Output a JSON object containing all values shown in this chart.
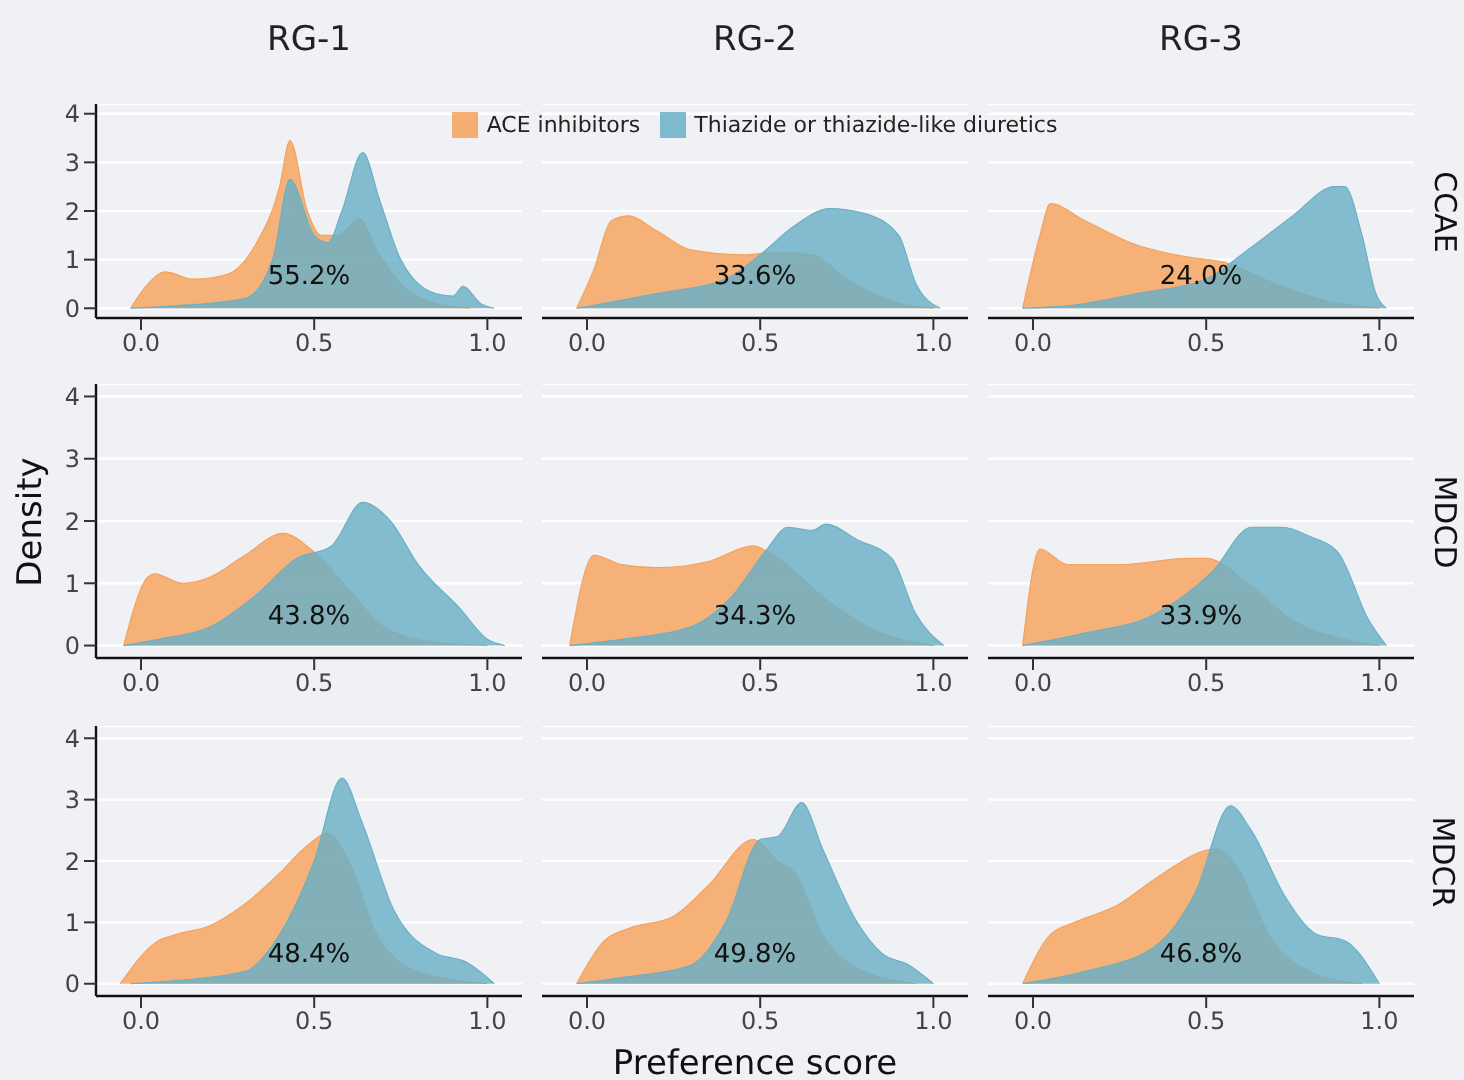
{
  "chart_data": [
    {
      "type": "area",
      "title": "RG-1",
      "xlim": [
        -0.13,
        1.1
      ],
      "ylim": [
        -0.2,
        4.2
      ],
      "xticks": [
        {
          "value": 0,
          "label": "0.0"
        },
        {
          "value": 0.5,
          "label": "0.5"
        },
        {
          "value": 1,
          "label": "1.0"
        }
      ],
      "yticks": [
        0,
        1,
        2,
        3,
        4
      ],
      "grid": "y",
      "annotations": [
        "55.2%"
      ],
      "series": [
        {
          "color": "#f5a25d",
          "x": [
            -0.03,
            0.02,
            0.07,
            0.15,
            0.25,
            0.33,
            0.4,
            0.43,
            0.48,
            0.52,
            0.57,
            0.63,
            0.68,
            0.75,
            0.85,
            0.95
          ],
          "values": [
            0,
            0.5,
            0.75,
            0.6,
            0.7,
            1.3,
            2.5,
            3.45,
            2,
            1.5,
            1.5,
            1.85,
            1.2,
            0.5,
            0.1,
            0
          ]
        },
        {
          "color": "#6ab0c6",
          "x": [
            -0.03,
            0.1,
            0.3,
            0.38,
            0.43,
            0.5,
            0.54,
            0.58,
            0.64,
            0.69,
            0.75,
            0.85,
            0.9,
            0.93,
            0.98,
            1.02
          ],
          "values": [
            0,
            0.05,
            0.2,
            1,
            2.65,
            1.5,
            1.35,
            2,
            3.2,
            2.2,
            1,
            0.3,
            0.25,
            0.45,
            0.1,
            0
          ]
        }
      ]
    },
    {
      "type": "area",
      "title": "RG-2",
      "xlim": [
        -0.13,
        1.1
      ],
      "ylim": [
        -0.2,
        4.2
      ],
      "xticks": [
        {
          "value": 0,
          "label": "0.0"
        },
        {
          "value": 0.5,
          "label": "0.5"
        },
        {
          "value": 1,
          "label": "1.0"
        }
      ],
      "yticks": [
        0,
        1,
        2,
        3,
        4
      ],
      "grid": "y",
      "tick_labels": "x",
      "legend": "top",
      "annotations": [
        "33.6%"
      ],
      "series": [
        {
          "name": "ACE inhibitors",
          "color": "#f5a25d",
          "x": [
            -0.03,
            0.02,
            0.07,
            0.12,
            0.2,
            0.3,
            0.45,
            0.55,
            0.65,
            0.75,
            0.9,
            1.0
          ],
          "values": [
            0,
            0.8,
            1.8,
            1.9,
            1.6,
            1.2,
            1.1,
            1.15,
            1.1,
            0.6,
            0.1,
            0
          ]
        },
        {
          "name": "Thiazide or thiazide-like diuretics",
          "color": "#6ab0c6",
          "x": [
            -0.03,
            0.05,
            0.2,
            0.4,
            0.5,
            0.6,
            0.7,
            0.8,
            0.9,
            0.95,
            1.02
          ],
          "values": [
            0,
            0.1,
            0.3,
            0.6,
            1.1,
            1.7,
            2.05,
            1.95,
            1.5,
            0.5,
            0
          ]
        }
      ]
    },
    {
      "type": "area",
      "title": "RG-3",
      "y2label": "CCAE",
      "xlim": [
        -0.13,
        1.1
      ],
      "ylim": [
        -0.2,
        4.2
      ],
      "xticks": [
        {
          "value": 0,
          "label": "0.0"
        },
        {
          "value": 0.5,
          "label": "0.5"
        },
        {
          "value": 1,
          "label": "1.0"
        }
      ],
      "yticks": [
        0,
        1,
        2,
        3,
        4
      ],
      "grid": "y",
      "tick_labels": "x",
      "annotations": [
        "24.0%"
      ],
      "series": [
        {
          "color": "#f5a25d",
          "x": [
            -0.03,
            0.02,
            0.05,
            0.15,
            0.3,
            0.45,
            0.55,
            0.7,
            0.85,
            1.0
          ],
          "values": [
            0,
            1.5,
            2.15,
            1.8,
            1.3,
            1.05,
            0.95,
            0.5,
            0.15,
            0
          ]
        },
        {
          "color": "#6ab0c6",
          "x": [
            -0.03,
            0.1,
            0.3,
            0.5,
            0.62,
            0.75,
            0.87,
            0.9,
            0.95,
            0.99,
            1.02
          ],
          "values": [
            0,
            0.05,
            0.3,
            0.6,
            1.2,
            1.9,
            2.5,
            2.5,
            1.5,
            0.3,
            0
          ]
        }
      ]
    },
    {
      "type": "area",
      "ylabel": "Density",
      "xlim": [
        -0.13,
        1.1
      ],
      "ylim": [
        -0.2,
        4.2
      ],
      "xticks": [
        {
          "value": 0,
          "label": "0.0"
        },
        {
          "value": 0.5,
          "label": "0.5"
        },
        {
          "value": 1,
          "label": "1.0"
        }
      ],
      "yticks": [
        0,
        1,
        2,
        3,
        4
      ],
      "grid": "y",
      "annotations": [
        "43.8%"
      ],
      "series": [
        {
          "color": "#f5a25d",
          "x": [
            -0.05,
            0.02,
            0.04,
            0.12,
            0.2,
            0.3,
            0.41,
            0.5,
            0.6,
            0.7,
            0.85,
            1.0
          ],
          "values": [
            0,
            1.1,
            1.15,
            1.0,
            1.1,
            1.45,
            1.8,
            1.5,
            0.9,
            0.3,
            0.05,
            0
          ]
        },
        {
          "color": "#6ab0c6",
          "x": [
            -0.05,
            0.05,
            0.2,
            0.33,
            0.45,
            0.55,
            0.64,
            0.72,
            0.8,
            0.92,
            1.0,
            1.05
          ],
          "values": [
            0,
            0.1,
            0.3,
            0.8,
            1.4,
            1.6,
            2.3,
            2.0,
            1.3,
            0.6,
            0.1,
            0
          ]
        }
      ]
    },
    {
      "type": "area",
      "xlim": [
        -0.13,
        1.1
      ],
      "ylim": [
        -0.2,
        4.2
      ],
      "xticks": [
        {
          "value": 0,
          "label": "0.0"
        },
        {
          "value": 0.5,
          "label": "0.5"
        },
        {
          "value": 1,
          "label": "1.0"
        }
      ],
      "yticks": [
        0,
        1,
        2,
        3,
        4
      ],
      "grid": "y",
      "tick_labels": "x",
      "annotations": [
        "34.3%"
      ],
      "series": [
        {
          "color": "#f5a25d",
          "x": [
            -0.05,
            0.02,
            0.1,
            0.2,
            0.35,
            0.48,
            0.55,
            0.7,
            0.85,
            1.0
          ],
          "values": [
            0,
            1.45,
            1.3,
            1.25,
            1.35,
            1.6,
            1.4,
            0.7,
            0.2,
            0
          ]
        },
        {
          "color": "#6ab0c6",
          "x": [
            -0.05,
            0.1,
            0.3,
            0.42,
            0.52,
            0.58,
            0.65,
            0.69,
            0.78,
            0.88,
            0.95,
            1.03
          ],
          "values": [
            0,
            0.1,
            0.3,
            0.8,
            1.55,
            1.9,
            1.85,
            1.95,
            1.7,
            1.4,
            0.5,
            0
          ]
        }
      ]
    },
    {
      "type": "area",
      "y2label": "MDCD",
      "xlim": [
        -0.13,
        1.1
      ],
      "ylim": [
        -0.2,
        4.2
      ],
      "xticks": [
        {
          "value": 0,
          "label": "0.0"
        },
        {
          "value": 0.5,
          "label": "0.5"
        },
        {
          "value": 1,
          "label": "1.0"
        }
      ],
      "yticks": [
        0,
        1,
        2,
        3,
        4
      ],
      "grid": "y",
      "tick_labels": "x",
      "annotations": [
        "33.9%"
      ],
      "series": [
        {
          "color": "#f5a25d",
          "x": [
            -0.03,
            0.02,
            0.1,
            0.25,
            0.45,
            0.5,
            0.62,
            0.75,
            0.9,
            1.0
          ],
          "values": [
            0,
            1.55,
            1.3,
            1.3,
            1.4,
            1.4,
            1.0,
            0.4,
            0.1,
            0
          ]
        },
        {
          "color": "#6ab0c6",
          "x": [
            -0.03,
            0.15,
            0.35,
            0.52,
            0.63,
            0.72,
            0.8,
            0.88,
            0.97,
            1.02
          ],
          "values": [
            0,
            0.2,
            0.5,
            1.2,
            1.9,
            1.9,
            1.75,
            1.5,
            0.4,
            0
          ]
        }
      ]
    },
    {
      "type": "area",
      "xlim": [
        -0.13,
        1.1
      ],
      "ylim": [
        -0.2,
        4.2
      ],
      "xticks": [
        {
          "value": 0,
          "label": "0.0"
        },
        {
          "value": 0.5,
          "label": "0.5"
        },
        {
          "value": 1,
          "label": "1.0"
        }
      ],
      "yticks": [
        0,
        1,
        2,
        3,
        4
      ],
      "grid": "y",
      "annotations": [
        "48.4%"
      ],
      "series": [
        {
          "color": "#f5a25d",
          "x": [
            -0.06,
            0.05,
            0.1,
            0.2,
            0.3,
            0.4,
            0.47,
            0.54,
            0.6,
            0.68,
            0.8,
            1.0
          ],
          "values": [
            0,
            0.7,
            0.8,
            0.95,
            1.3,
            1.8,
            2.2,
            2.45,
            2.0,
            0.8,
            0.2,
            0
          ]
        },
        {
          "color": "#6ab0c6",
          "x": [
            -0.03,
            0.1,
            0.3,
            0.4,
            0.5,
            0.58,
            0.64,
            0.73,
            0.85,
            0.94,
            1.02
          ],
          "values": [
            0,
            0.05,
            0.2,
            0.8,
            2.0,
            3.35,
            2.6,
            1.2,
            0.5,
            0.35,
            0
          ]
        }
      ]
    },
    {
      "type": "area",
      "xlabel": "Preference score",
      "xlim": [
        -0.13,
        1.1
      ],
      "ylim": [
        -0.2,
        4.2
      ],
      "xticks": [
        {
          "value": 0,
          "label": "0.0"
        },
        {
          "value": 0.5,
          "label": "0.5"
        },
        {
          "value": 1,
          "label": "1.0"
        }
      ],
      "yticks": [
        0,
        1,
        2,
        3,
        4
      ],
      "grid": "y",
      "tick_labels": "x",
      "annotations": [
        "49.8%"
      ],
      "series": [
        {
          "color": "#f5a25d",
          "x": [
            -0.03,
            0.05,
            0.12,
            0.25,
            0.35,
            0.48,
            0.55,
            0.6,
            0.68,
            0.8,
            0.95
          ],
          "values": [
            0,
            0.7,
            0.9,
            1.1,
            1.6,
            2.35,
            2.0,
            1.8,
            0.8,
            0.2,
            0
          ]
        },
        {
          "color": "#6ab0c6",
          "x": [
            -0.03,
            0.1,
            0.3,
            0.4,
            0.5,
            0.55,
            0.62,
            0.68,
            0.78,
            0.85,
            0.93,
            1.0
          ],
          "values": [
            0,
            0.1,
            0.3,
            1.0,
            2.35,
            2.4,
            2.95,
            2.2,
            1.0,
            0.5,
            0.3,
            0
          ]
        }
      ]
    },
    {
      "type": "area",
      "y2label": "MDCR",
      "xlim": [
        -0.13,
        1.1
      ],
      "ylim": [
        -0.2,
        4.2
      ],
      "xticks": [
        {
          "value": 0,
          "label": "0.0"
        },
        {
          "value": 0.5,
          "label": "0.5"
        },
        {
          "value": 1,
          "label": "1.0"
        }
      ],
      "yticks": [
        0,
        1,
        2,
        3,
        4
      ],
      "grid": "y",
      "tick_labels": "x",
      "annotations": [
        "46.8%"
      ],
      "series": [
        {
          "color": "#f5a25d",
          "x": [
            -0.03,
            0.05,
            0.12,
            0.25,
            0.35,
            0.53,
            0.6,
            0.68,
            0.8,
            0.95
          ],
          "values": [
            0,
            0.8,
            1.0,
            1.3,
            1.7,
            2.2,
            1.8,
            0.8,
            0.2,
            0
          ]
        },
        {
          "color": "#6ab0c6",
          "x": [
            -0.03,
            0.15,
            0.35,
            0.47,
            0.57,
            0.63,
            0.73,
            0.82,
            0.9,
            1.0
          ],
          "values": [
            0,
            0.2,
            0.6,
            1.5,
            2.9,
            2.5,
            1.4,
            0.8,
            0.7,
            0
          ]
        }
      ]
    }
  ]
}
